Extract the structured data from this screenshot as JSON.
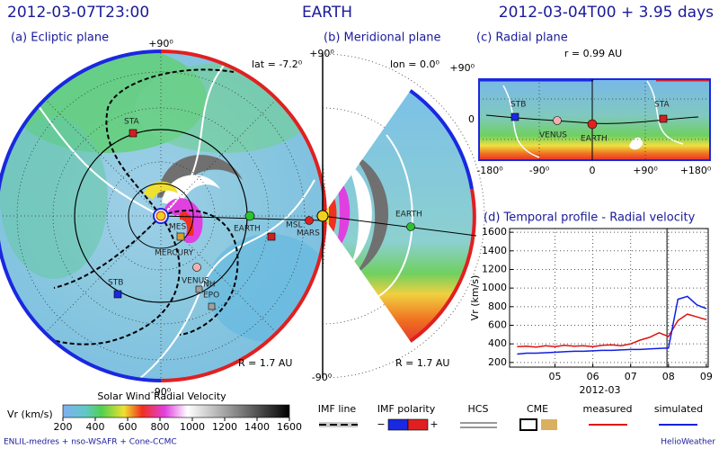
{
  "header": {
    "time": "2012-03-07T23:00",
    "target": "EARTH",
    "run": "2012-03-04T00 + 3.95 days"
  },
  "panels": {
    "ecliptic": {
      "title": "(a) Ecliptic plane",
      "top": "+90⁰",
      "bottom": "-90⁰",
      "lat": "lat = -7.2⁰",
      "radius": "R = 1.7 AU",
      "labels": [
        "STA",
        "MES",
        "MERCURY",
        "EARTH",
        "MSL",
        "MARS",
        "STB",
        "VENUS",
        "NH",
        "EPO"
      ]
    },
    "meridional": {
      "title": "(b) Meridional plane",
      "top": "+90⁰",
      "bottom": "-90⁰",
      "lon": "lon = 0.0⁰",
      "radius": "R = 1.7 AU",
      "labels": [
        "EARTH"
      ]
    },
    "radial": {
      "title": "(c) Radial plane",
      "r": "r = 0.99 AU",
      "y_labels": [
        "+90⁰",
        "0"
      ],
      "x_labels": [
        "-180⁰",
        "-90⁰",
        "0",
        "+90⁰",
        "+180⁰"
      ],
      "labels": [
        "STB",
        "VENUS",
        "EARTH",
        "STA"
      ]
    }
  },
  "chart_data": {
    "type": "line",
    "title": "(d) Temporal profile - Radial velocity",
    "y_label": "Vr (km/s)",
    "x_label": "2012-03",
    "x": [
      4.0,
      4.25,
      4.5,
      4.75,
      5.0,
      5.25,
      5.5,
      5.75,
      6.0,
      6.25,
      6.5,
      6.75,
      7.0,
      7.25,
      7.5,
      7.75,
      8.0,
      8.25,
      8.5,
      8.75,
      9.0
    ],
    "series": [
      {
        "name": "measured",
        "color": "#e01010",
        "values": [
          370,
          375,
          365,
          380,
          370,
          385,
          375,
          380,
          370,
          385,
          390,
          380,
          400,
          440,
          470,
          520,
          480,
          650,
          720,
          690,
          660
        ]
      },
      {
        "name": "simulated",
        "color": "#1020e0",
        "values": [
          290,
          300,
          300,
          305,
          310,
          315,
          320,
          320,
          325,
          330,
          330,
          335,
          340,
          340,
          345,
          350,
          355,
          880,
          910,
          820,
          780
        ]
      }
    ],
    "xlim": [
      3.8,
      9.05
    ],
    "xticks": [
      {
        "value": 5,
        "label": "05"
      },
      {
        "value": 6,
        "label": "06"
      },
      {
        "value": 7,
        "label": "07"
      },
      {
        "value": 8,
        "label": "08"
      },
      {
        "value": 9,
        "label": "09"
      }
    ],
    "ylim": [
      150,
      1640
    ],
    "yticks": [
      200,
      400,
      600,
      800,
      1000,
      1200,
      1400,
      1600
    ],
    "marker_x": 7.96,
    "grid": true
  },
  "legend": {
    "colorbar_title": "Solar Wind Radial Velocity",
    "colorbar_unit": "Vr (km/s)",
    "colorbar_ticks": [
      200,
      400,
      600,
      800,
      1000,
      1200,
      1400,
      1600
    ],
    "imf_line": "IMF line",
    "imf_polarity": "IMF polarity",
    "minus": "−",
    "plus": "+",
    "hcs": "HCS",
    "cme": "CME"
  },
  "footer": {
    "left": "ENLIL-medres + nso-WSAFR + Cone-CCMC",
    "right": "HelioWeather"
  }
}
